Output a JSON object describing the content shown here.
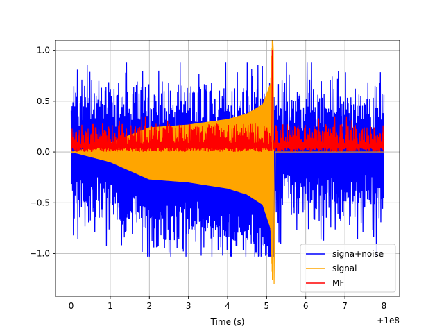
{
  "chart_data": {
    "type": "line",
    "title": "",
    "xlabel": "Time (s)",
    "ylabel": "",
    "x_offset_label": "+1e8",
    "xlim": [
      -0.4,
      8.4
    ],
    "ylim": [
      -1.42,
      1.1
    ],
    "x_ticks": [
      0,
      1,
      2,
      3,
      4,
      5,
      6,
      7,
      8
    ],
    "x_tick_labels": [
      "0",
      "1",
      "2",
      "3",
      "4",
      "5",
      "6",
      "7",
      "8"
    ],
    "y_ticks": [
      -1.0,
      -0.5,
      0.0,
      0.5,
      1.0
    ],
    "y_tick_labels": [
      "−1.0",
      "−0.5",
      "0.0",
      "0.5",
      "1.0"
    ],
    "grid": true,
    "legend_position": "lower-right",
    "series": [
      {
        "name": "signa+noise",
        "color": "#0000ff",
        "description": "noisy signal, roughly spanning -0.8 to 0.7",
        "x_range": [
          0,
          8
        ],
        "samples": 700,
        "approx_amplitude": 0.45,
        "min": -1.03,
        "max": 0.88
      },
      {
        "name": "signal",
        "color": "#ffa500",
        "description": "chirp with growing amplitude, merger near t=5.15",
        "x_range": [
          0,
          8
        ],
        "merger_time": 5.15,
        "peak_max": 1.0,
        "peak_min": -1.3,
        "envelope_points": [
          [
            0.0,
            0.0
          ],
          [
            1.0,
            0.1
          ],
          [
            2.0,
            0.27
          ],
          [
            3.0,
            0.3
          ],
          [
            4.0,
            0.36
          ],
          [
            4.5,
            0.42
          ],
          [
            4.9,
            0.52
          ],
          [
            5.1,
            0.75
          ],
          [
            5.15,
            1.3
          ],
          [
            5.2,
            0.0
          ]
        ]
      },
      {
        "name": "MF",
        "color": "#ff0000",
        "description": "matched filter output, non-negative noise around 0.1, peak 1.0 at merger",
        "x_range": [
          0,
          8
        ],
        "samples": 700,
        "peak_time": 5.15,
        "peak_value": 1.0,
        "typical_max": 0.35
      }
    ]
  }
}
